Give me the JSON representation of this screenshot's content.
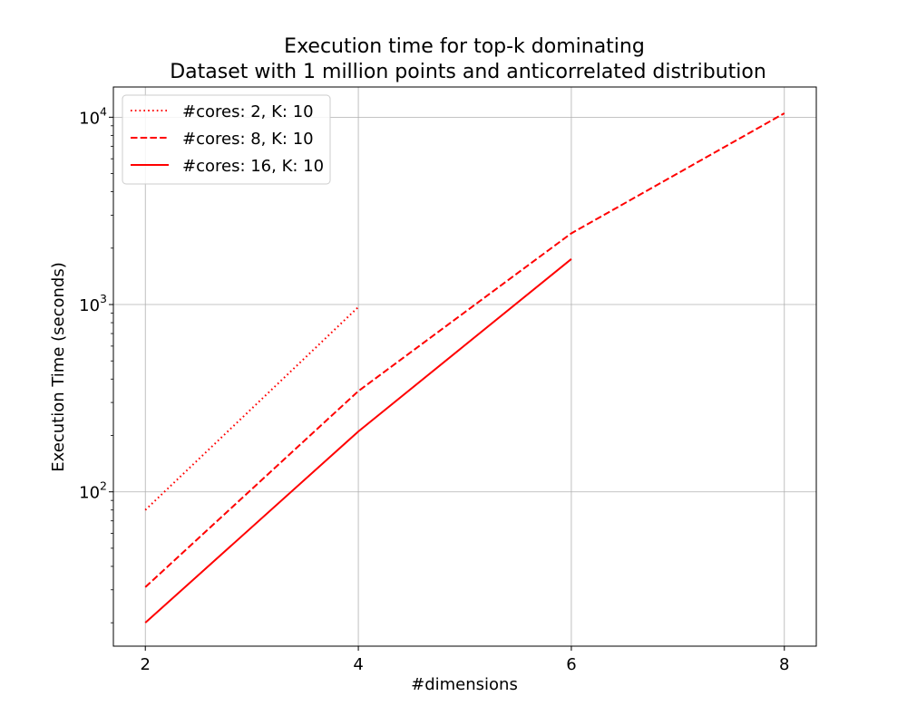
{
  "chart_data": {
    "type": "line",
    "title_lines": [
      "Execution time for top-k dominating",
      "Dataset with 1 million points and anticorrelated distribution"
    ],
    "xlabel": "#dimensions",
    "ylabel": "Execution Time (seconds)",
    "x_ticks": [
      2,
      4,
      6,
      8
    ],
    "x_tick_labels": [
      "2",
      "4",
      "6",
      "8"
    ],
    "xlim": [
      1.7,
      8.3
    ],
    "y_scale": "log",
    "ylim": [
      15,
      14500
    ],
    "y_major_ticks": [
      {
        "value": 100,
        "base": "10",
        "exp": "2"
      },
      {
        "value": 1000,
        "base": "10",
        "exp": "3"
      },
      {
        "value": 10000,
        "base": "10",
        "exp": "4"
      }
    ],
    "y_minor_ticks": [
      20,
      30,
      40,
      50,
      60,
      70,
      80,
      90,
      200,
      300,
      400,
      500,
      600,
      700,
      800,
      900,
      2000,
      3000,
      4000,
      5000,
      6000,
      7000,
      8000,
      9000
    ],
    "grid": true,
    "legend_position": "upper-left",
    "color": "#ff0000",
    "series": [
      {
        "name": "#cores: 2, K: 10",
        "style": "dotted",
        "x": [
          2,
          4
        ],
        "values": [
          80,
          970
        ]
      },
      {
        "name": "#cores: 8, K: 10",
        "style": "dashed",
        "x": [
          2,
          4,
          6,
          8
        ],
        "values": [
          31,
          345,
          2400,
          10500
        ]
      },
      {
        "name": "#cores: 16, K: 10",
        "style": "solid",
        "x": [
          2,
          4,
          6
        ],
        "values": [
          20,
          210,
          1750
        ]
      }
    ]
  }
}
